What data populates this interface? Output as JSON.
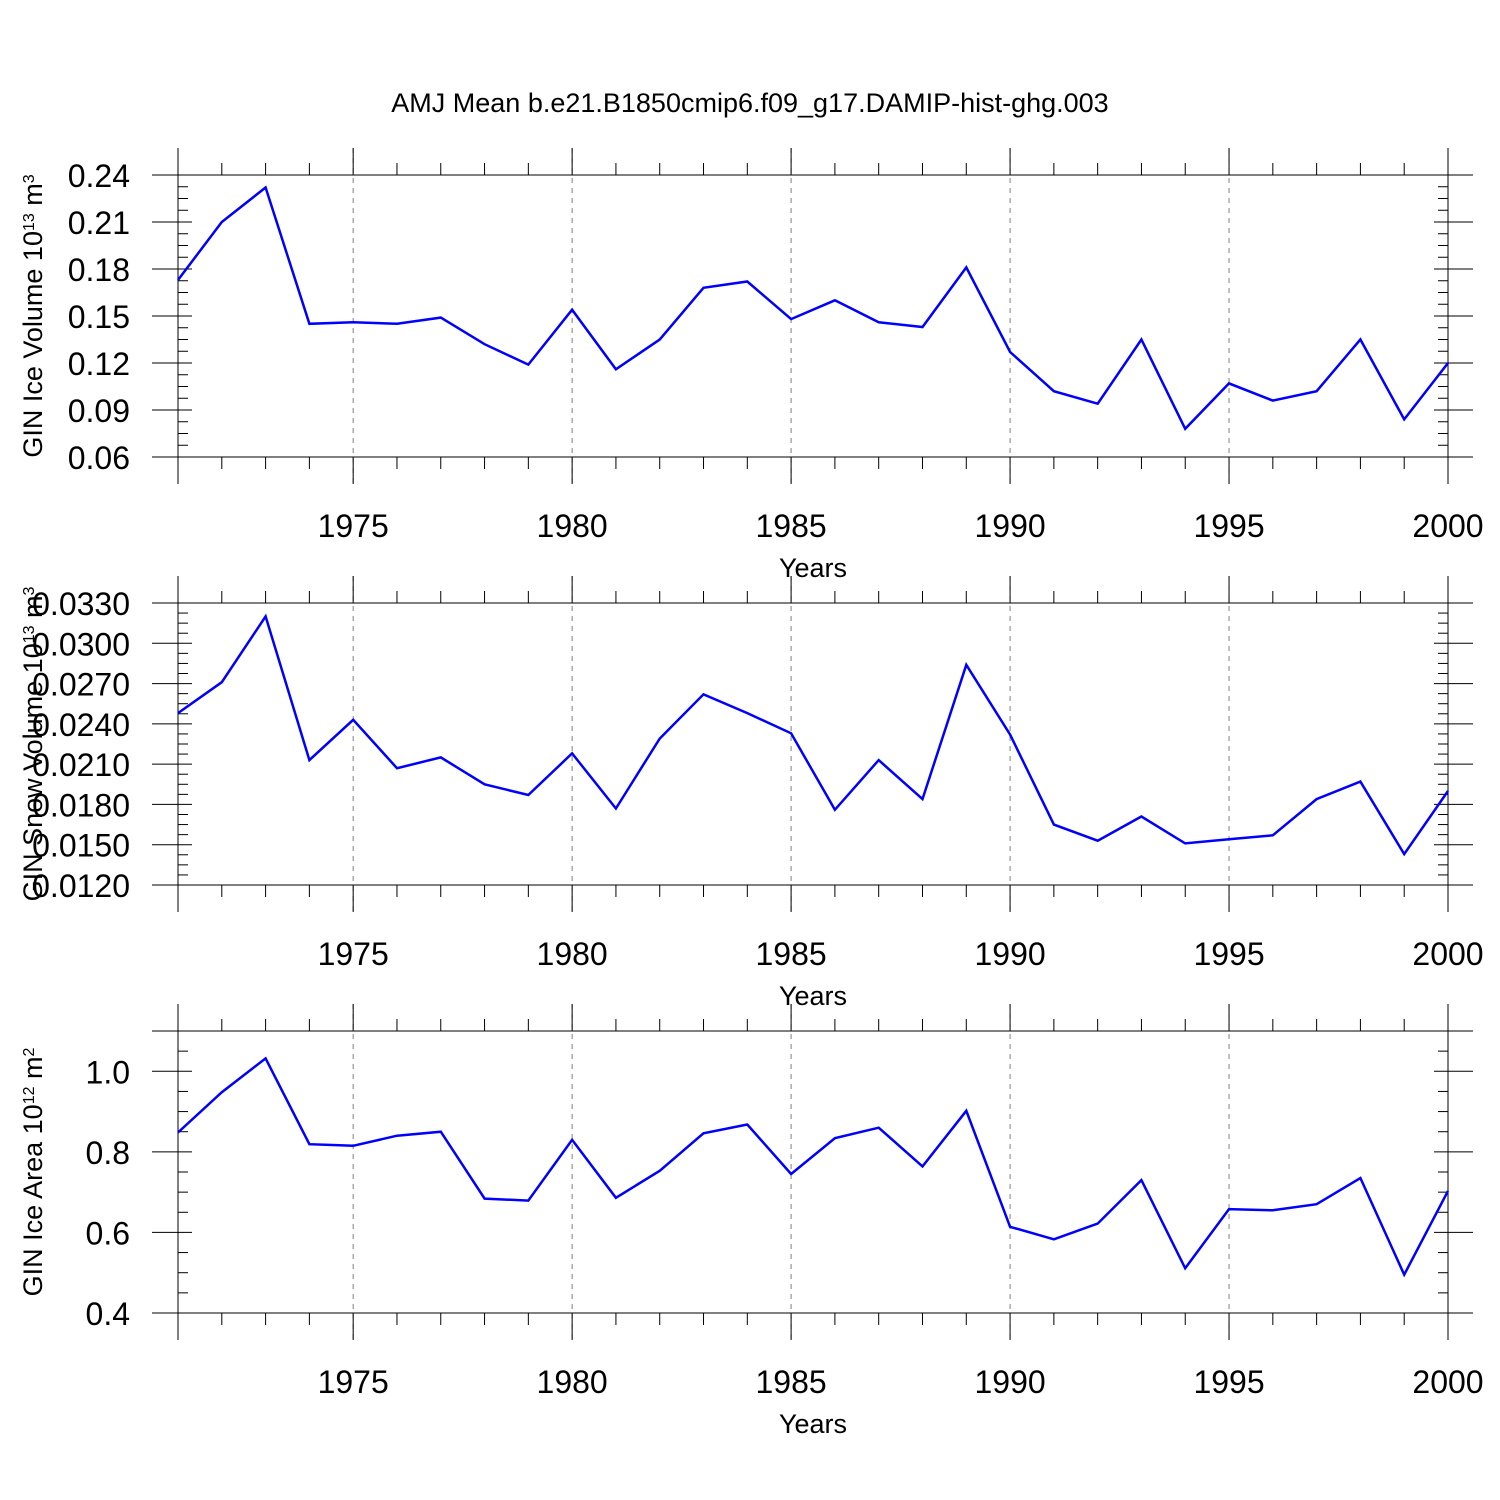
{
  "figure": {
    "title": "AMJ Mean b.e21.B1850cmip6.f09_g17.DAMIP-hist-ghg.003",
    "line_color": "#0000ff",
    "axis_color": "#000000",
    "grid_color": "#808080"
  },
  "chart_data": [
    {
      "type": "line",
      "title": "",
      "xlabel": "Years",
      "ylabel": "GIN Ice Volume 10",
      "ylabel_sup1": "13",
      "ylabel_unit": " m",
      "ylabel_sup2": "3",
      "xlim": [
        1971,
        2000
      ],
      "ylim": [
        0.06,
        0.24
      ],
      "xticks": [
        1975,
        1980,
        1985,
        1990,
        1995,
        2000
      ],
      "yticks": [
        0.06,
        0.09,
        0.12,
        0.15,
        0.18,
        0.21,
        0.24
      ],
      "ytick_labels": [
        "0.06",
        "0.09",
        "0.12",
        "0.15",
        "0.18",
        "0.21",
        "0.24"
      ],
      "x": [
        1971,
        1972,
        1973,
        1974,
        1975,
        1976,
        1977,
        1978,
        1979,
        1980,
        1981,
        1982,
        1983,
        1984,
        1985,
        1986,
        1987,
        1988,
        1989,
        1990,
        1991,
        1992,
        1993,
        1994,
        1995,
        1996,
        1997,
        1998,
        1999,
        2000
      ],
      "series": [
        {
          "values": [
            0.173,
            0.21,
            0.232,
            0.145,
            0.146,
            0.145,
            0.149,
            0.132,
            0.119,
            0.154,
            0.116,
            0.135,
            0.168,
            0.172,
            0.148,
            0.16,
            0.146,
            0.143,
            0.181,
            0.127,
            0.102,
            0.094,
            0.135,
            0.078,
            0.107,
            0.096,
            0.102,
            0.135,
            0.084,
            0.12
          ]
        }
      ]
    },
    {
      "type": "line",
      "title": "",
      "xlabel": "Years",
      "ylabel": "GIN Snow Volume 10",
      "ylabel_sup1": "13",
      "ylabel_unit": " m",
      "ylabel_sup2": "3",
      "xlim": [
        1971,
        2000
      ],
      "ylim": [
        0.012,
        0.033
      ],
      "xticks": [
        1975,
        1980,
        1985,
        1990,
        1995,
        2000
      ],
      "yticks": [
        0.012,
        0.015,
        0.018,
        0.021,
        0.024,
        0.027,
        0.03,
        0.033
      ],
      "ytick_labels": [
        "0.0120",
        "0.0150",
        "0.0180",
        "0.0210",
        "0.0240",
        "0.0270",
        "0.0300",
        "0.0330"
      ],
      "x": [
        1971,
        1972,
        1973,
        1974,
        1975,
        1976,
        1977,
        1978,
        1979,
        1980,
        1981,
        1982,
        1983,
        1984,
        1985,
        1986,
        1987,
        1988,
        1989,
        1990,
        1991,
        1992,
        1993,
        1994,
        1995,
        1996,
        1997,
        1998,
        1999,
        2000
      ],
      "series": [
        {
          "values": [
            0.0248,
            0.0271,
            0.032,
            0.0213,
            0.0243,
            0.0207,
            0.0215,
            0.0195,
            0.0187,
            0.0218,
            0.0177,
            0.0229,
            0.0262,
            0.0248,
            0.0233,
            0.0176,
            0.0213,
            0.0184,
            0.0284,
            0.0232,
            0.0165,
            0.0153,
            0.0171,
            0.0151,
            0.0154,
            0.0157,
            0.0184,
            0.0197,
            0.0143,
            0.019
          ]
        }
      ]
    },
    {
      "type": "line",
      "title": "",
      "xlabel": "Years",
      "ylabel": "GIN Ice Area 10",
      "ylabel_sup1": "12",
      "ylabel_unit": " m",
      "ylabel_sup2": "2",
      "xlim": [
        1971,
        2000
      ],
      "ylim": [
        0.4,
        1.1
      ],
      "xticks": [
        1975,
        1980,
        1985,
        1990,
        1995,
        2000
      ],
      "yticks": [
        0.4,
        0.6,
        0.8,
        1.0
      ],
      "ytick_labels": [
        "0.4",
        "0.6",
        "0.8",
        "1.0"
      ],
      "x": [
        1971,
        1972,
        1973,
        1974,
        1975,
        1976,
        1977,
        1978,
        1979,
        1980,
        1981,
        1982,
        1983,
        1984,
        1985,
        1986,
        1987,
        1988,
        1989,
        1990,
        1991,
        1992,
        1993,
        1994,
        1995,
        1996,
        1997,
        1998,
        1999,
        2000
      ],
      "series": [
        {
          "values": [
            0.848,
            0.948,
            1.032,
            0.819,
            0.815,
            0.84,
            0.85,
            0.684,
            0.679,
            0.83,
            0.686,
            0.753,
            0.846,
            0.868,
            0.745,
            0.834,
            0.86,
            0.764,
            0.902,
            0.614,
            0.583,
            0.622,
            0.73,
            0.511,
            0.658,
            0.655,
            0.67,
            0.735,
            0.495,
            0.703
          ]
        }
      ]
    }
  ]
}
